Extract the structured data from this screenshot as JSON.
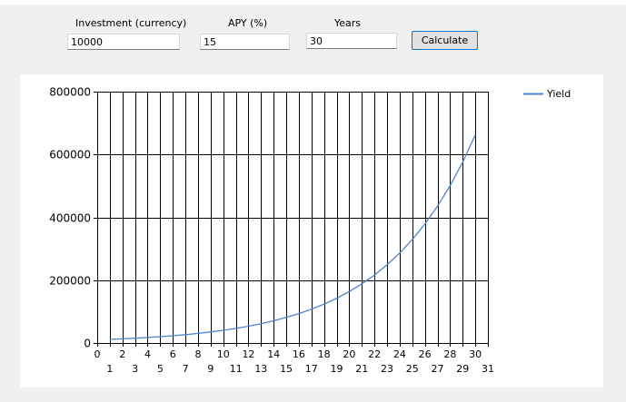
{
  "form": {
    "investment_label": "Investment (currency)",
    "investment_value": "10000",
    "apy_label": "APY (%)",
    "apy_value": "15",
    "years_label": "Years",
    "years_value": "30",
    "calculate_label": "Calculate"
  },
  "chart_data": {
    "type": "line",
    "legend_position": "top-right",
    "grid": true,
    "xlim": [
      0,
      31
    ],
    "ylim": [
      0,
      800000
    ],
    "yticks": [
      0,
      200000,
      400000,
      600000,
      800000
    ],
    "ytick_labels": [
      "0",
      "200000",
      "400000",
      "600000",
      "800000"
    ],
    "xticks_row1": [
      0,
      2,
      4,
      6,
      8,
      10,
      12,
      14,
      16,
      18,
      20,
      22,
      24,
      26,
      28,
      30
    ],
    "xticks_row2": [
      1,
      3,
      5,
      7,
      9,
      11,
      13,
      15,
      17,
      19,
      21,
      23,
      25,
      27,
      29,
      31
    ],
    "series": [
      {
        "name": "Yield",
        "color": "#4a86d0",
        "x": [
          1,
          2,
          3,
          4,
          5,
          6,
          7,
          8,
          9,
          10,
          11,
          12,
          13,
          14,
          15,
          16,
          17,
          18,
          19,
          20,
          21,
          22,
          23,
          24,
          25,
          26,
          27,
          28,
          29,
          30
        ],
        "y": [
          11500,
          13225,
          15209,
          17490,
          20114,
          23131,
          26600,
          30590,
          35179,
          40456,
          46524,
          53503,
          61528,
          70757,
          81371,
          93576,
          107613,
          123755,
          142318,
          163665,
          188215,
          216447,
          248915,
          286252,
          329190,
          378568,
          435353,
          500656,
          575755,
          662118
        ]
      }
    ]
  }
}
